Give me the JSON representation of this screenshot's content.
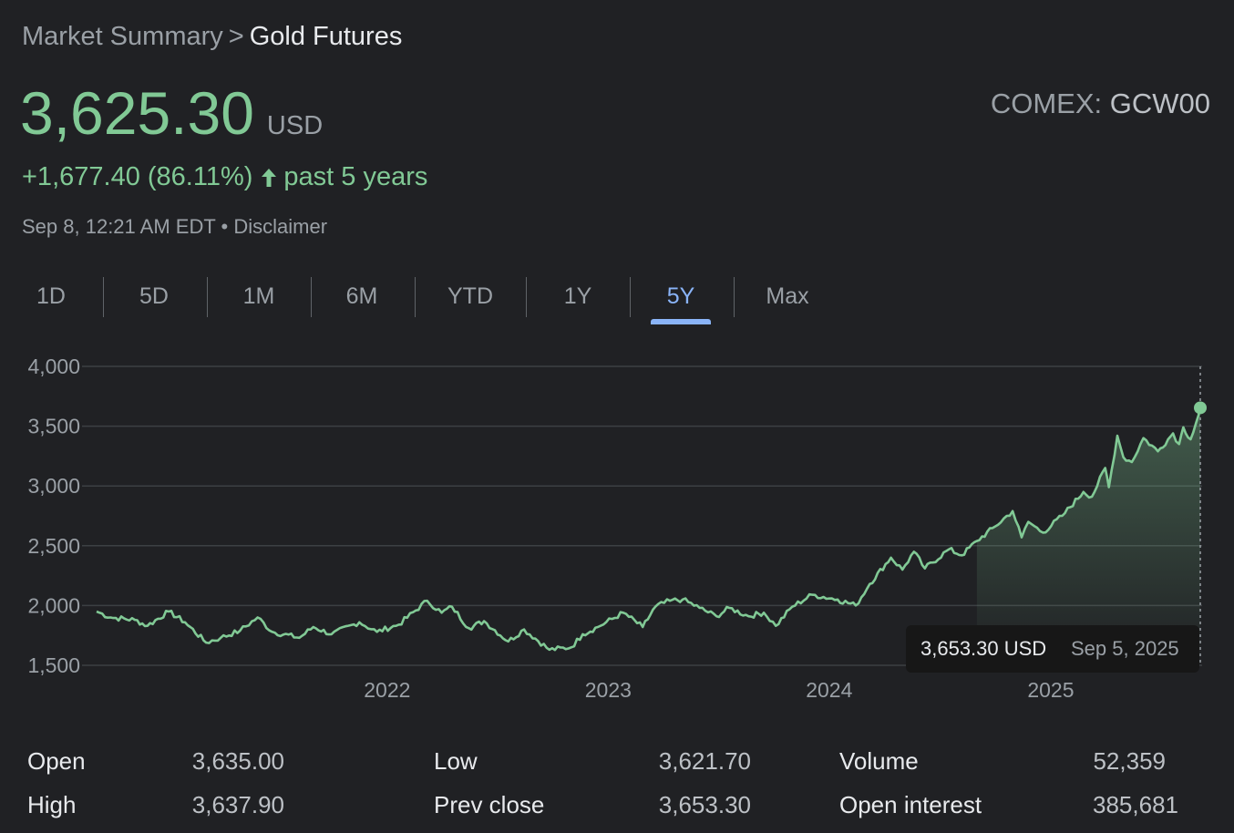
{
  "breadcrumb": {
    "parent": "Market Summary",
    "separator": ">",
    "current": "Gold Futures"
  },
  "quote": {
    "price": "3,625.30",
    "currency": "USD",
    "exchange": "COMEX:",
    "symbol": "GCW00",
    "change": "+1,677.40 (86.11%)",
    "change_period": "past 5 years",
    "timestamp": "Sep 8, 12:21 AM EDT",
    "bullet": "•",
    "disclaimer": "Disclaimer"
  },
  "ranges": [
    {
      "label": "1D",
      "active": false
    },
    {
      "label": "5D",
      "active": false
    },
    {
      "label": "1M",
      "active": false
    },
    {
      "label": "6M",
      "active": false
    },
    {
      "label": "YTD",
      "active": false
    },
    {
      "label": "1Y",
      "active": false
    },
    {
      "label": "5Y",
      "active": true
    },
    {
      "label": "Max",
      "active": false
    }
  ],
  "colors": {
    "background": "#202124",
    "positive": "#81c995",
    "accent": "#8ab4f8",
    "grid": "#3c4043",
    "text_muted": "#9aa0a6"
  },
  "chart_data": {
    "type": "area",
    "x_tick_labels": [
      "2022",
      "2023",
      "2024",
      "2025"
    ],
    "y_tick_labels": [
      "4,000",
      "3,500",
      "3,000",
      "2,500",
      "2,000",
      "1,500"
    ],
    "ylim": [
      1500,
      4000
    ],
    "xlim": [
      "2020-09-08",
      "2025-09-08"
    ],
    "grid": true,
    "series": [
      {
        "values": [
          [
            "2020-09-08",
            1950
          ],
          [
            "2020-10-01",
            1900
          ],
          [
            "2020-11-10",
            1880
          ],
          [
            "2020-12-01",
            1830
          ],
          [
            "2021-01-05",
            1950
          ],
          [
            "2021-02-01",
            1860
          ],
          [
            "2021-03-08",
            1690
          ],
          [
            "2021-04-01",
            1730
          ],
          [
            "2021-05-03",
            1790
          ],
          [
            "2021-06-01",
            1900
          ],
          [
            "2021-06-25",
            1780
          ],
          [
            "2021-08-09",
            1730
          ],
          [
            "2021-09-01",
            1820
          ],
          [
            "2021-10-01",
            1760
          ],
          [
            "2021-11-16",
            1860
          ],
          [
            "2021-12-15",
            1780
          ],
          [
            "2022-01-20",
            1840
          ],
          [
            "2022-03-08",
            2040
          ],
          [
            "2022-04-01",
            1940
          ],
          [
            "2022-04-18",
            1990
          ],
          [
            "2022-05-16",
            1810
          ],
          [
            "2022-06-10",
            1870
          ],
          [
            "2022-07-20",
            1700
          ],
          [
            "2022-08-15",
            1800
          ],
          [
            "2022-09-26",
            1630
          ],
          [
            "2022-11-01",
            1650
          ],
          [
            "2022-11-20",
            1760
          ],
          [
            "2022-12-15",
            1820
          ],
          [
            "2023-01-26",
            1940
          ],
          [
            "2023-02-27",
            1820
          ],
          [
            "2023-03-20",
            1990
          ],
          [
            "2023-04-13",
            2040
          ],
          [
            "2023-05-04",
            2050
          ],
          [
            "2023-06-01",
            1980
          ],
          [
            "2023-06-29",
            1910
          ],
          [
            "2023-07-20",
            1980
          ],
          [
            "2023-08-21",
            1910
          ],
          [
            "2023-09-15",
            1940
          ],
          [
            "2023-10-05",
            1830
          ],
          [
            "2023-11-01",
            1990
          ],
          [
            "2023-12-04",
            2090
          ],
          [
            "2024-01-15",
            2050
          ],
          [
            "2024-02-14",
            2000
          ],
          [
            "2024-03-08",
            2180
          ],
          [
            "2024-04-12",
            2400
          ],
          [
            "2024-05-01",
            2300
          ],
          [
            "2024-05-20",
            2450
          ],
          [
            "2024-06-07",
            2310
          ],
          [
            "2024-07-17",
            2470
          ],
          [
            "2024-08-07",
            2420
          ],
          [
            "2024-09-01",
            2540
          ],
          [
            "2024-10-01",
            2660
          ],
          [
            "2024-10-30",
            2790
          ],
          [
            "2024-11-14",
            2570
          ],
          [
            "2024-11-25",
            2700
          ],
          [
            "2024-12-19",
            2610
          ],
          [
            "2025-01-20",
            2750
          ],
          [
            "2025-02-24",
            2950
          ],
          [
            "2025-03-10",
            2910
          ],
          [
            "2025-04-01",
            3150
          ],
          [
            "2025-04-07",
            2990
          ],
          [
            "2025-04-21",
            3420
          ],
          [
            "2025-05-01",
            3240
          ],
          [
            "2025-05-15",
            3200
          ],
          [
            "2025-06-03",
            3400
          ],
          [
            "2025-06-27",
            3290
          ],
          [
            "2025-07-22",
            3440
          ],
          [
            "2025-08-01",
            3350
          ],
          [
            "2025-08-08",
            3490
          ],
          [
            "2025-08-20",
            3390
          ],
          [
            "2025-09-02",
            3590
          ],
          [
            "2025-09-05",
            3653.3
          ]
        ]
      }
    ],
    "tooltip": {
      "value": "3,653.30 USD",
      "date": "Sep 5, 2025"
    }
  },
  "stats": [
    {
      "label": "Open",
      "value": "3,635.00"
    },
    {
      "label": "Low",
      "value": "3,621.70"
    },
    {
      "label": "Volume",
      "value": "52,359"
    },
    {
      "label": "High",
      "value": "3,637.90"
    },
    {
      "label": "Prev close",
      "value": "3,653.30"
    },
    {
      "label": "Open interest",
      "value": "385,681"
    }
  ]
}
